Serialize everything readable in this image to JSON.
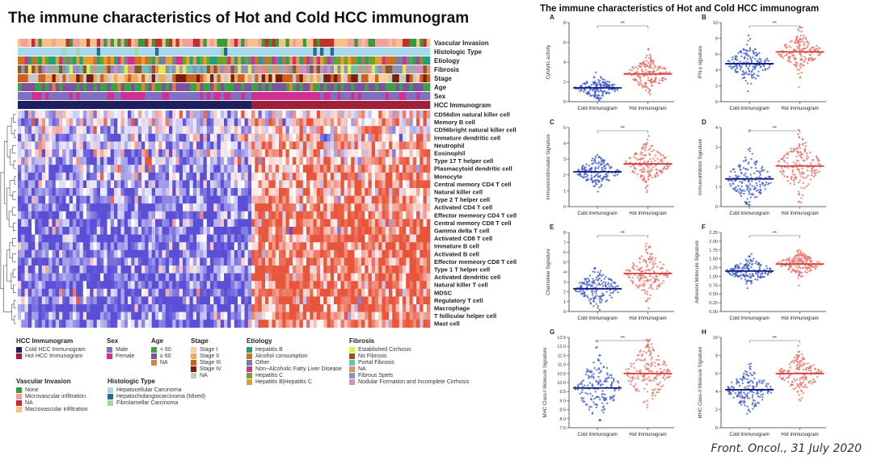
{
  "figure": {
    "main_title": "The immune characteristics of Hot and Cold HCC immunogram",
    "side_title": "The immune characteristics of Hot and Cold HCC immunogram",
    "credit": "Front. Oncol., 31 July 2020"
  },
  "chart_data": [
    {
      "type": "heatmap",
      "annotation_tracks": [
        "Vascular Invasion",
        "Histologic Type",
        "Etiology",
        "Fibrosis",
        "Stage",
        "Age",
        "Sex",
        "HCC Immunogram"
      ],
      "rows": [
        "CD56dim natural killer cell",
        "Memory B cell",
        "CD56bright natural killer cell",
        "Immature dendritic cell",
        "Neutrophil",
        "Eosinophil",
        "Type 17 T helper cell",
        "Plasmacytoid dendritic cell",
        "Monocyte",
        "Central memory CD4 T cell",
        "Natural killer cell",
        "Type 2 T helper cell",
        "Activated CD4 T cell",
        "Effector memeory CD4 T cell",
        "Central memory CD8 T cell",
        "Gamma delta T cell",
        "Activated CD8 T cell",
        "Immature  B cell",
        "Activated B cell",
        "Effector memeory CD8 T cell",
        "Type 1 T helper cell",
        "Activated dendritic cell",
        "Natural killer T cell",
        "MDSC",
        "Regulatory T cell",
        "Macrophage",
        "T follicular helper cell",
        "Mast cell"
      ],
      "column_groups": [
        "Cold HCC Immunogram",
        "Hot HCC Immunogram"
      ],
      "low_color": "#5a4fd6",
      "high_color": "#e8553a",
      "mid_color": "#ffffff",
      "dendrogram": "rows, left"
    },
    {
      "panel": "A",
      "type": "scatter",
      "categories": [
        "Cold Immunogram",
        "Hot Immunogram"
      ],
      "ylabel": "Cytolytic activity",
      "ylim": [
        0,
        8
      ],
      "yticks": [
        "0",
        "2",
        "4",
        "6",
        "8"
      ],
      "medians": [
        1.4,
        2.8
      ],
      "spread": [
        0.5,
        0.8
      ],
      "significance": "**"
    },
    {
      "panel": "B",
      "type": "scatter",
      "categories": [
        "Cold Immunogram",
        "Hot Immunogram"
      ],
      "ylabel": "IFN-γ signature",
      "ylim": [
        0,
        10
      ],
      "yticks": [
        "0",
        "2",
        "4",
        "6",
        "8",
        "10"
      ],
      "medians": [
        4.8,
        6.3
      ],
      "spread": [
        1.1,
        1.0
      ],
      "significance": "**"
    },
    {
      "panel": "C",
      "type": "scatter",
      "categories": [
        "Cold Immunogram",
        "Hot Immunogram"
      ],
      "ylabel": "Immunocostimulator Signature",
      "ylim": [
        0,
        5
      ],
      "yticks": [
        "0",
        "1",
        "2",
        "3",
        "4",
        "5"
      ],
      "medians": [
        2.2,
        2.7
      ],
      "spread": [
        0.45,
        0.6
      ],
      "significance": "**"
    },
    {
      "panel": "D",
      "type": "scatter",
      "categories": [
        "Cold Immunogram",
        "Hot Immunogram"
      ],
      "ylabel": "Immunoinhibitor Signature",
      "ylim": [
        0,
        4
      ],
      "yticks": [
        "0",
        "1",
        "2",
        "3",
        "4"
      ],
      "medians": [
        1.4,
        2.05
      ],
      "spread": [
        0.6,
        0.65
      ],
      "significance": "**"
    },
    {
      "panel": "E",
      "type": "scatter",
      "categories": [
        "Cold Immunogram",
        "Hot Immunogram"
      ],
      "ylabel": "Chemokine Signature",
      "ylim": [
        0,
        8
      ],
      "yticks": [
        "0",
        "1",
        "2",
        "3",
        "4",
        "5",
        "6",
        "7",
        "8"
      ],
      "medians": [
        2.3,
        3.85
      ],
      "spread": [
        0.9,
        1.1
      ],
      "significance": "**"
    },
    {
      "panel": "F",
      "type": "scatter",
      "categories": [
        "Cold Immunogram",
        "Hot Immunogram"
      ],
      "ylabel": "Adhesion Molecule Signature",
      "ylim": [
        0,
        2.25
      ],
      "yticks": [
        "0.00",
        "0.25",
        "0.50",
        "0.75",
        "1.00",
        "1.25",
        "1.50",
        "1.75",
        "2.00",
        "2.25"
      ],
      "medians": [
        1.15,
        1.35
      ],
      "spread": [
        0.18,
        0.15
      ],
      "significance": "**"
    },
    {
      "panel": "G",
      "type": "scatter",
      "categories": [
        "Cold Immunogram",
        "Hot Immunogram"
      ],
      "ylabel": "MHC Class-I Molecule Signature",
      "ylim": [
        7.5,
        12.5
      ],
      "yticks": [
        "7.5",
        "8.0",
        "8.5",
        "9.0",
        "9.5",
        "10.0",
        "10.5",
        "11.0",
        "11.5",
        "12.0",
        "12.5"
      ],
      "medians": [
        9.7,
        10.5
      ],
      "spread": [
        0.8,
        0.8
      ],
      "significance": "**"
    },
    {
      "panel": "H",
      "type": "scatter",
      "categories": [
        "Cold Immunogram",
        "Hot Immunogram"
      ],
      "ylabel": "MHC Class-II Molecule Signature",
      "ylim": [
        0,
        10
      ],
      "yticks": [
        "0",
        "2",
        "4",
        "6",
        "8",
        "10"
      ],
      "medians": [
        4.2,
        6.0
      ],
      "spread": [
        1.1,
        1.0
      ],
      "significance": "**"
    }
  ],
  "scatter_colors": {
    "cold": "#3a55c8",
    "hot": "#ea6a5e",
    "cold_median": "#0a1a80",
    "hot_median": "#d04040"
  },
  "legend": [
    {
      "title": "HCC Immunogram",
      "items": [
        {
          "label": "Cold HCC Immunogram",
          "color": "#1e1f5e"
        },
        {
          "label": "Hot HCC Immunogram",
          "color": "#a0203a"
        }
      ]
    },
    {
      "title": "Sex",
      "items": [
        {
          "label": "Male",
          "color": "#8070c0"
        },
        {
          "label": "Female",
          "color": "#d03090"
        }
      ]
    },
    {
      "title": "Age",
      "items": [
        {
          "label": "< 60",
          "color": "#40a040"
        },
        {
          "label": "≥ 60",
          "color": "#8050a0"
        },
        {
          "label": "NA",
          "color": "#e08030"
        }
      ]
    },
    {
      "title": "Stage",
      "items": [
        {
          "label": "Stage I",
          "color": "#f8d0a0"
        },
        {
          "label": "Stage II",
          "color": "#f0a860"
        },
        {
          "label": "Stage III",
          "color": "#d06020"
        },
        {
          "label": "Stage IV",
          "color": "#7a1e0e"
        },
        {
          "label": "NA",
          "color": "#c8c8c8"
        }
      ]
    },
    {
      "title": "Etiology",
      "items": [
        {
          "label": "Hepatitis B",
          "color": "#20a080"
        },
        {
          "label": "Alcohol consumption",
          "color": "#d07020"
        },
        {
          "label": "Other",
          "color": "#7080a0"
        },
        {
          "label": "Non−Alcoholic Fatty Liver Disease",
          "color": "#d03090"
        },
        {
          "label": "Hepatitis C",
          "color": "#70a030"
        },
        {
          "label": "Hepatitis B|Hepatitis C",
          "color": "#e0a030"
        }
      ]
    },
    {
      "title": "Fibrosis",
      "items": [
        {
          "label": "Established Cirrhosis",
          "color": "#e8e850"
        },
        {
          "label": "No Fibrosis",
          "color": "#8a5a20"
        },
        {
          "label": "Portal Fibrosis",
          "color": "#70c0b0"
        },
        {
          "label": "NA",
          "color": "#e09070"
        },
        {
          "label": "Fibrous Spets",
          "color": "#9090c0"
        },
        {
          "label": "Nodular Formation and Incomplete Cirrhosis",
          "color": "#d090c0"
        }
      ]
    },
    {
      "title": "Vascular Invasion",
      "items": [
        {
          "label": "None",
          "color": "#3a9a3a"
        },
        {
          "label": "Microvascular infiltration",
          "color": "#f0a0a0"
        },
        {
          "label": "NA",
          "color": "#c03030"
        },
        {
          "label": "Macrovascular infiltration",
          "color": "#f5c08a"
        }
      ]
    },
    {
      "title": "Histologic Type",
      "items": [
        {
          "label": "Hepatocellular Carcinoma",
          "color": "#a8d8ea"
        },
        {
          "label": "Hepatocholangiocarcinoma (Mixed)",
          "color": "#2a6a8a"
        },
        {
          "label": "Fibrolamellar Carcinoma",
          "color": "#a0d8a0"
        }
      ]
    }
  ]
}
